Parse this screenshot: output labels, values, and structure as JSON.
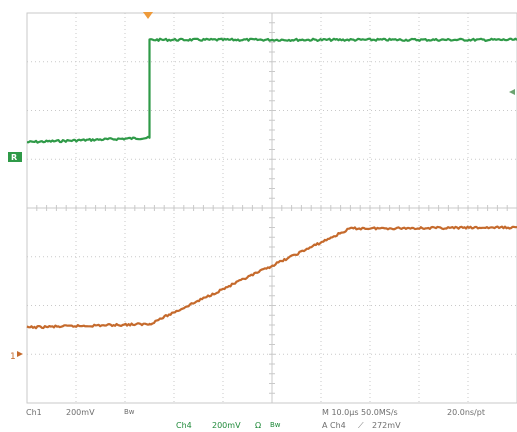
{
  "colors": {
    "ch1": "#2f9a48",
    "ch4": "#c56a2c",
    "trigger": "#ee9a3a",
    "grid": "#c9c9c9",
    "label_green": "#1f8a3a",
    "label_orange": "#c46a1a",
    "label_gray": "#6e6e6e"
  },
  "markers": {
    "ch1": "R",
    "ch4": "1"
  },
  "status": {
    "ch1_name": "Ch1",
    "ch1_scale": "200mV",
    "ch1_bw": "Bw",
    "ch4_name": "Ch4",
    "ch4_scale": "200mV",
    "ch4_ohm": "Ω",
    "ch4_bw": "Bw",
    "timebase": "M 10.0μs 50.0MS/s",
    "resolution": "20.0ns/pt",
    "trigger_source": "A Ch4",
    "trigger_slope": "⟋",
    "trigger_level": "272mV"
  },
  "chart_data": {
    "type": "line",
    "x_divisions": 10,
    "y_divisions": 8,
    "grid": true,
    "series": [
      {
        "x": [
          0,
          2.5,
          2.5,
          10
        ],
        "y": [
          5.35,
          5.44,
          7.45,
          7.45
        ]
      },
      {
        "x": [
          0,
          2.5,
          6.6,
          10
        ],
        "y": [
          1.55,
          1.62,
          3.58,
          3.6
        ]
      }
    ]
  }
}
